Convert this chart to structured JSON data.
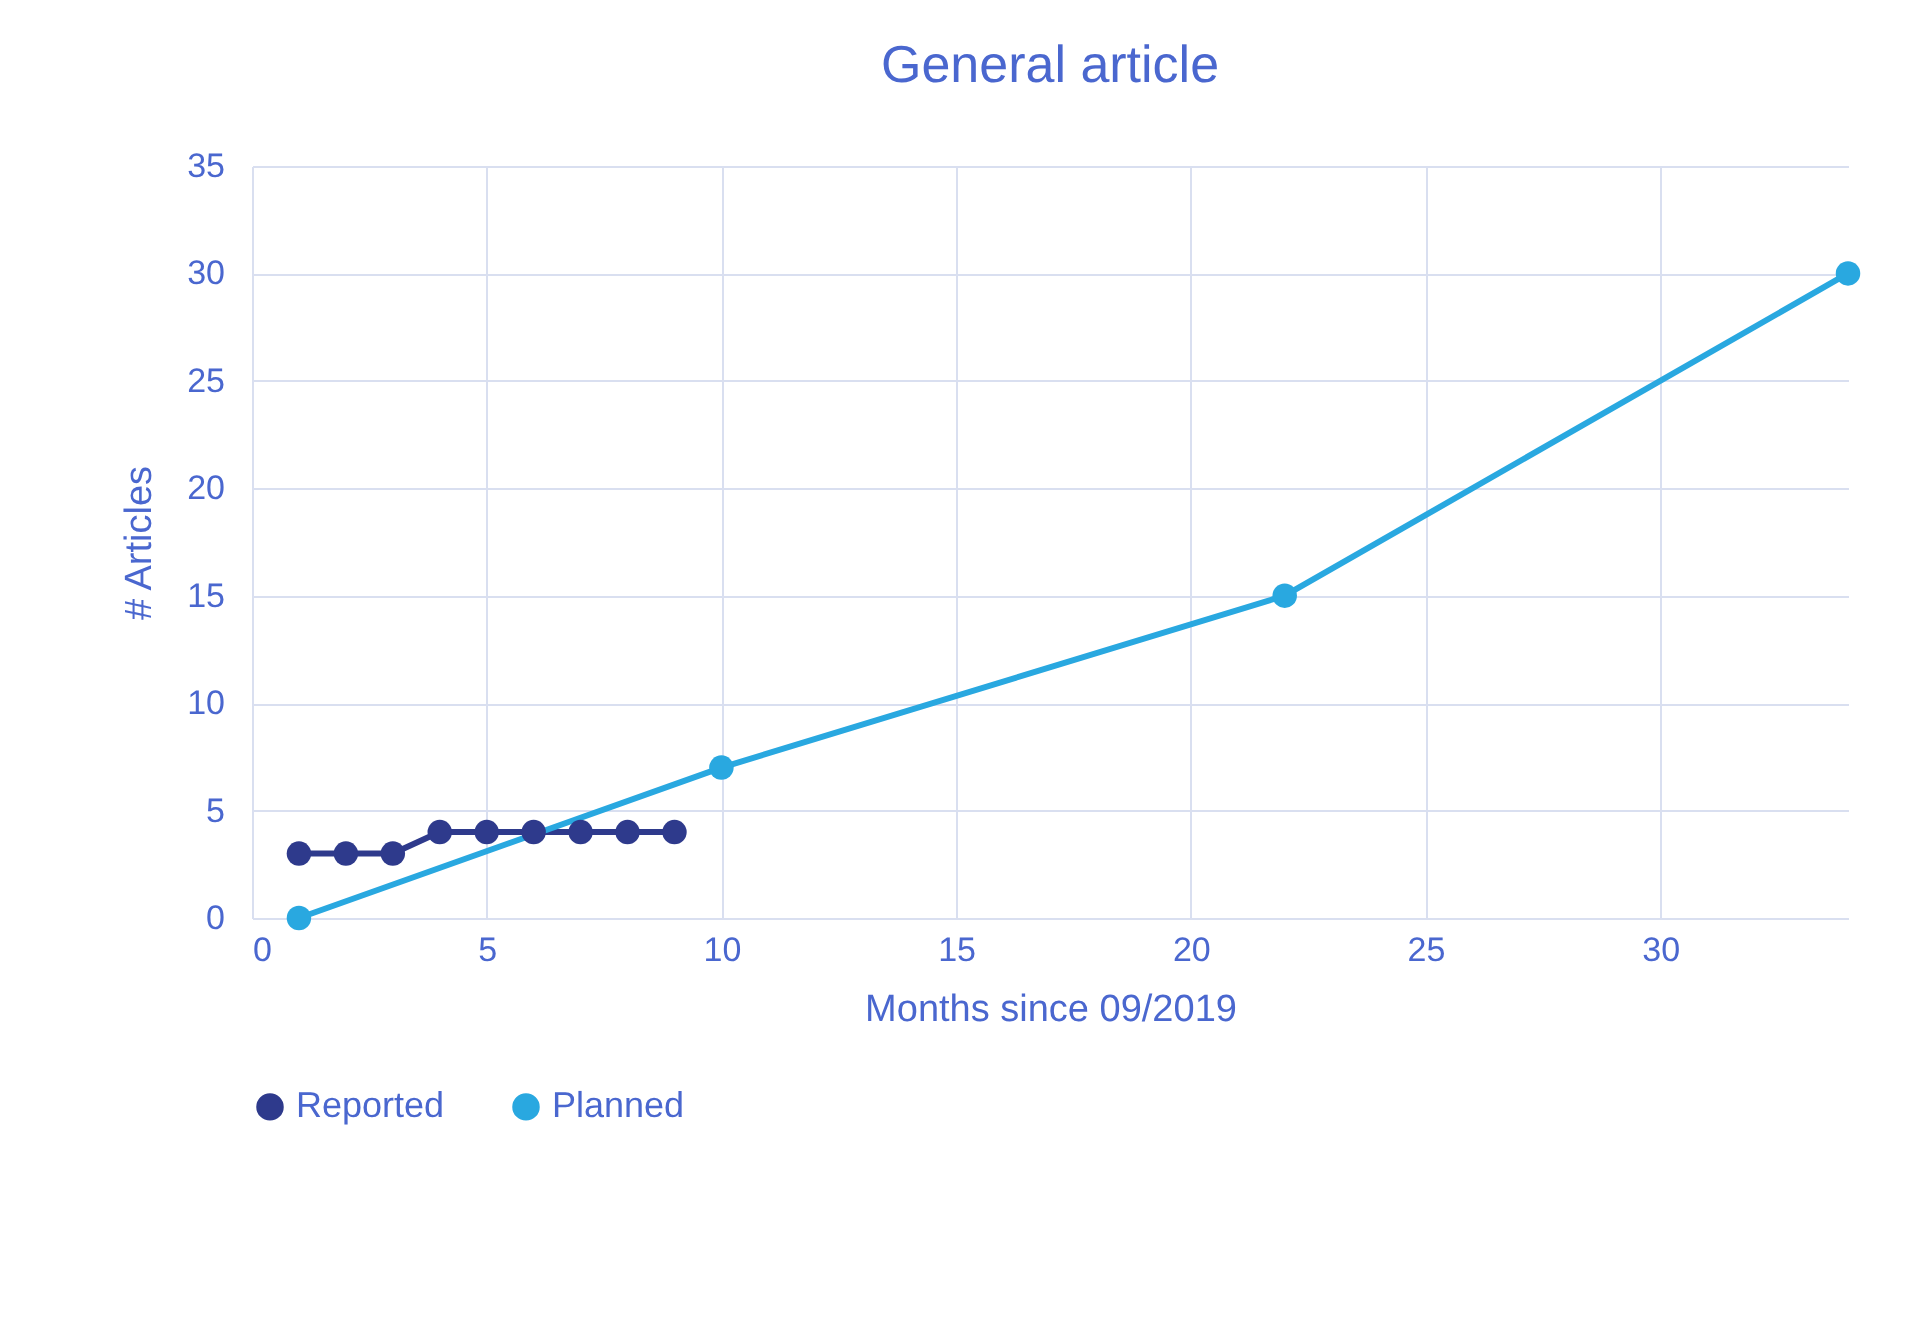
{
  "chart_data": {
    "type": "line",
    "title": "General article",
    "xlabel": "Months since 09/2019",
    "ylabel": "# Articles",
    "xlim": [
      0,
      34
    ],
    "xticks": [
      0,
      5,
      10,
      15,
      20,
      25,
      30
    ],
    "ylim": [
      0,
      35
    ],
    "yticks": [
      0,
      5,
      10,
      15,
      20,
      25,
      30,
      35
    ],
    "grid": true,
    "legend": "bottom",
    "marker": "circle",
    "line_style": "solid",
    "series": [
      {
        "name": "Reported",
        "color": "#2e3a8c",
        "x": [
          1,
          2,
          3,
          4,
          5,
          6,
          7,
          8,
          9
        ],
        "values": [
          3,
          3,
          3,
          4,
          4,
          4,
          4,
          4,
          4
        ]
      },
      {
        "name": "Planned",
        "color": "#29a8e0",
        "x": [
          1,
          10,
          22,
          34
        ],
        "values": [
          0,
          7,
          15,
          30
        ]
      }
    ]
  }
}
